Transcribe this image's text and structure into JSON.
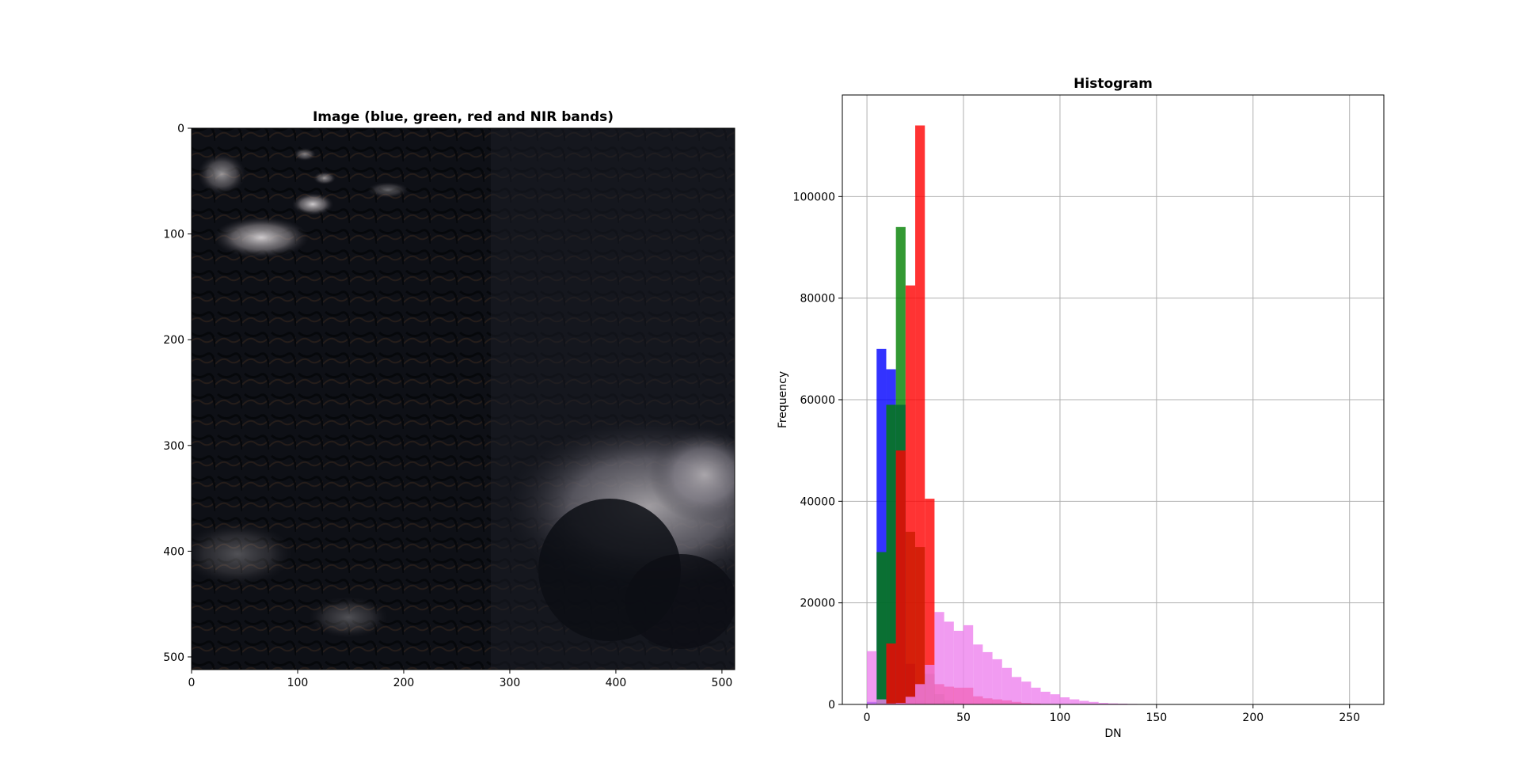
{
  "chart_data": [
    {
      "type": "image",
      "title": "Image (blue, green, red and NIR bands)",
      "xlim": [
        0,
        512
      ],
      "ylim": [
        512,
        0
      ],
      "xticks": [
        0,
        100,
        200,
        300,
        400,
        500
      ],
      "yticks": [
        0,
        100,
        200,
        300,
        400,
        500
      ],
      "xtick_labels": [
        "0",
        "100",
        "200",
        "300",
        "400",
        "500"
      ],
      "ytick_labels": [
        "0",
        "100",
        "200",
        "300",
        "400",
        "500"
      ]
    },
    {
      "type": "bar",
      "title": "Histogram",
      "xlabel": "DN",
      "ylabel": "Frequency",
      "xlim": [
        -12.75,
        267.75
      ],
      "ylim": [
        0,
        120000
      ],
      "xticks": [
        0,
        50,
        100,
        150,
        200,
        250
      ],
      "xtick_labels": [
        "0",
        "50",
        "100",
        "150",
        "200",
        "250"
      ],
      "yticks": [
        0,
        20000,
        40000,
        60000,
        80000,
        100000
      ],
      "ytick_labels": [
        "0",
        "20000",
        "40000",
        "60000",
        "80000",
        "100000"
      ],
      "grid": true,
      "bin_width": 5,
      "series": [
        {
          "color": "#0000ff",
          "bins": [
            {
              "x": 0,
              "y": 500
            },
            {
              "x": 5,
              "y": 70000
            },
            {
              "x": 10,
              "y": 66000
            },
            {
              "x": 15,
              "y": 59000
            },
            {
              "x": 20,
              "y": 8000
            },
            {
              "x": 25,
              "y": 800
            },
            {
              "x": 30,
              "y": 200
            }
          ]
        },
        {
          "color": "#008000",
          "bins": [
            {
              "x": 5,
              "y": 30000
            },
            {
              "x": 10,
              "y": 59000
            },
            {
              "x": 15,
              "y": 94000
            },
            {
              "x": 20,
              "y": 34000
            },
            {
              "x": 25,
              "y": 31000
            },
            {
              "x": 30,
              "y": 6000
            },
            {
              "x": 35,
              "y": 2000
            },
            {
              "x": 40,
              "y": 800
            },
            {
              "x": 45,
              "y": 300
            }
          ]
        },
        {
          "color": "#ff0000",
          "bins": [
            {
              "x": 10,
              "y": 12000
            },
            {
              "x": 15,
              "y": 50000
            },
            {
              "x": 20,
              "y": 82500
            },
            {
              "x": 25,
              "y": 114000
            },
            {
              "x": 30,
              "y": 40500
            },
            {
              "x": 35,
              "y": 4000
            },
            {
              "x": 40,
              "y": 3500
            },
            {
              "x": 45,
              "y": 3300
            },
            {
              "x": 50,
              "y": 3300
            },
            {
              "x": 55,
              "y": 1600
            },
            {
              "x": 60,
              "y": 1200
            },
            {
              "x": 65,
              "y": 1000
            },
            {
              "x": 70,
              "y": 800
            },
            {
              "x": 75,
              "y": 500
            },
            {
              "x": 80,
              "y": 300
            },
            {
              "x": 85,
              "y": 200
            },
            {
              "x": 90,
              "y": 100
            }
          ]
        },
        {
          "color": "#ee82ee",
          "bins": [
            {
              "x": 0,
              "y": 10500
            },
            {
              "x": 5,
              "y": 1000
            },
            {
              "x": 10,
              "y": 200
            },
            {
              "x": 15,
              "y": 300
            },
            {
              "x": 20,
              "y": 1500
            },
            {
              "x": 25,
              "y": 4000
            },
            {
              "x": 30,
              "y": 7800
            },
            {
              "x": 35,
              "y": 18200
            },
            {
              "x": 40,
              "y": 16300
            },
            {
              "x": 45,
              "y": 14500
            },
            {
              "x": 50,
              "y": 15600
            },
            {
              "x": 55,
              "y": 11800
            },
            {
              "x": 60,
              "y": 10300
            },
            {
              "x": 65,
              "y": 8900
            },
            {
              "x": 70,
              "y": 7200
            },
            {
              "x": 75,
              "y": 5400
            },
            {
              "x": 80,
              "y": 4500
            },
            {
              "x": 85,
              "y": 3300
            },
            {
              "x": 90,
              "y": 2500
            },
            {
              "x": 95,
              "y": 2000
            },
            {
              "x": 100,
              "y": 1400
            },
            {
              "x": 105,
              "y": 1000
            },
            {
              "x": 110,
              "y": 700
            },
            {
              "x": 115,
              "y": 500
            },
            {
              "x": 120,
              "y": 300
            },
            {
              "x": 125,
              "y": 200
            },
            {
              "x": 130,
              "y": 150
            },
            {
              "x": 135,
              "y": 100
            },
            {
              "x": 140,
              "y": 60
            }
          ]
        }
      ]
    }
  ]
}
